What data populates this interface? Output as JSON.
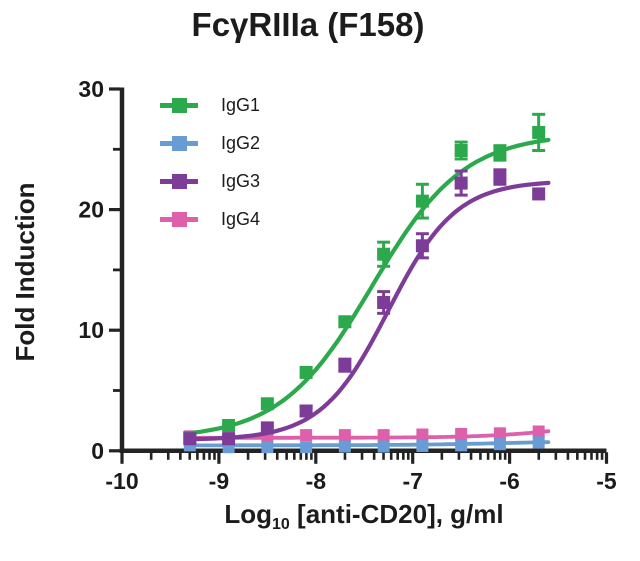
{
  "chart_data": {
    "type": "scatter",
    "title": "FcγRIIIa (F158)",
    "ylabel": "Fold Induction",
    "xlabel": "Log10 [anti-CD20], g/ml",
    "xlabel_parts": {
      "prefix": "Log",
      "sub": "10",
      "suffix": " [anti-CD20], g/ml"
    },
    "xlim": [
      -10,
      -5
    ],
    "ylim": [
      0,
      30
    ],
    "xticks": [
      {
        "label": "-10",
        "value": -10
      },
      {
        "label": "-9",
        "value": -9
      },
      {
        "label": "-8",
        "value": -8
      },
      {
        "label": "-7",
        "value": -7
      },
      {
        "label": "-6",
        "value": -6
      },
      {
        "label": "-5",
        "value": -5
      }
    ],
    "yticks": [
      {
        "label": "0",
        "value": 0
      },
      {
        "label": "10",
        "value": 10
      },
      {
        "label": "20",
        "value": 20
      },
      {
        "label": "30",
        "value": 30
      }
    ],
    "y_minor_ticks": [
      5,
      15,
      25
    ],
    "x_minor_ticks": "log-decade",
    "grid": false,
    "legend_position": "upper-left-inside",
    "axis_color": "#232323",
    "text_color": "#1b1b1b",
    "x": [
      -9.3,
      -8.9,
      -8.5,
      -8.1,
      -7.7,
      -7.3,
      -6.9,
      -6.5,
      -6.1,
      -5.7
    ],
    "series": [
      {
        "name": "IgG1",
        "color": "#2CA94C",
        "values": [
          1.1,
          2.1,
          3.9,
          6.5,
          10.7,
          16.3,
          20.7,
          24.9,
          24.7,
          26.4
        ],
        "err": [
          0,
          0,
          0,
          0,
          0,
          1.0,
          1.4,
          0.7,
          0.6,
          1.5
        ],
        "fit": {
          "bottom": 1.0,
          "top": 26.3,
          "logec50": -7.42,
          "hill": 0.92
        }
      },
      {
        "name": "IgG2",
        "color": "#699BD4",
        "values": [
          0.45,
          0.3,
          0.3,
          0.3,
          0.35,
          0.35,
          0.4,
          0.45,
          0.55,
          0.7
        ],
        "err": [
          0,
          0,
          0,
          0,
          0,
          0,
          0,
          0,
          0,
          0
        ],
        "fit": {
          "bottom": 0.45,
          "top": 0.85,
          "logec50": -6.0,
          "hill": 0.8
        }
      },
      {
        "name": "IgG3",
        "color": "#7D3C98",
        "values": [
          1.0,
          1.0,
          1.9,
          3.3,
          7.1,
          12.3,
          17.0,
          22.2,
          22.7,
          21.3
        ],
        "err": [
          0,
          0,
          0,
          0.4,
          0.5,
          0.9,
          1.0,
          1.0,
          0.6,
          0
        ],
        "fit": {
          "bottom": 0.9,
          "top": 22.4,
          "logec50": -7.25,
          "hill": 1.25
        }
      },
      {
        "name": "IgG4",
        "color": "#DE5FAA",
        "values": [
          1.2,
          1.2,
          1.2,
          1.3,
          1.3,
          1.3,
          1.35,
          1.4,
          1.45,
          1.6
        ],
        "err": [
          0,
          0,
          0,
          0,
          0,
          0,
          0,
          0,
          0,
          0
        ],
        "fit": {
          "bottom": 1.08,
          "top": 2.6,
          "logec50": -5.35,
          "hill": 1.0
        }
      }
    ]
  }
}
